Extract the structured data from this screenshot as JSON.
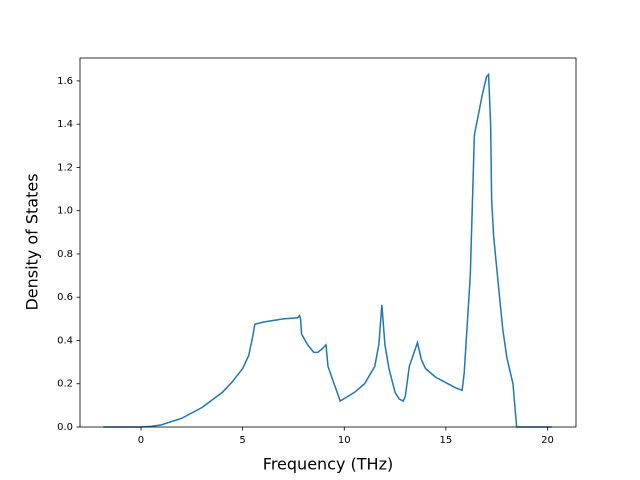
{
  "chart_data": {
    "type": "line",
    "xlabel": "Frequency (THz)",
    "ylabel": "Density of States",
    "x": [
      -1.85,
      0,
      0.5,
      1,
      2,
      3,
      4,
      4.5,
      5,
      5.3,
      5.5,
      5.6,
      6,
      7,
      7.7,
      7.8,
      7.85,
      7.9,
      8.2,
      8.5,
      8.7,
      8.9,
      9.1,
      9.2,
      9.5,
      9.8,
      10.5,
      11,
      11.5,
      11.7,
      11.85,
      12,
      12.2,
      12.5,
      12.7,
      12.9,
      13.0,
      13.2,
      13.6,
      13.8,
      14,
      14.5,
      15,
      15.5,
      15.8,
      15.9,
      16.2,
      16.4,
      16.8,
      17.0,
      17.1,
      17.2,
      17.25,
      17.35,
      17.64,
      17.8,
      18.0,
      18.3,
      18.48,
      20.2
    ],
    "series": [
      {
        "color": "#1f77b4",
        "values": [
          0,
          0,
          0.003,
          0.01,
          0.04,
          0.09,
          0.16,
          0.21,
          0.27,
          0.33,
          0.42,
          0.475,
          0.485,
          0.5,
          0.505,
          0.515,
          0.5,
          0.43,
          0.38,
          0.345,
          0.345,
          0.36,
          0.38,
          0.28,
          0.2,
          0.12,
          0.16,
          0.2,
          0.28,
          0.38,
          0.565,
          0.38,
          0.27,
          0.16,
          0.13,
          0.12,
          0.14,
          0.28,
          0.39,
          0.31,
          0.27,
          0.23,
          0.205,
          0.18,
          0.17,
          0.25,
          0.7,
          1.35,
          1.54,
          1.62,
          1.63,
          1.4,
          1.05,
          0.88,
          0.6,
          0.45,
          0.32,
          0.2,
          0,
          0
        ]
      }
    ],
    "xlim": [
      -3.0,
      21.4
    ],
    "ylim": [
      0,
      1.706
    ],
    "xticks": [
      0,
      5,
      10,
      15,
      20
    ],
    "yticks": [
      {
        "value": 0,
        "label": "0.0"
      },
      0.2,
      0.4,
      0.6,
      0.8,
      {
        "value": 1,
        "label": "1.0"
      },
      1.2,
      1.4,
      1.6
    ]
  }
}
